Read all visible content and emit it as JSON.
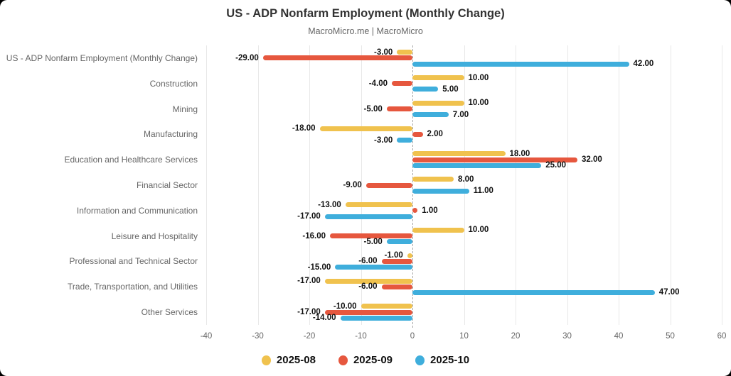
{
  "card": {
    "title": "US - ADP Nonfarm Employment (Monthly Change)",
    "subtitle": "MacroMicro.me | MacroMicro"
  },
  "chart_data": {
    "type": "bar",
    "orientation": "horizontal",
    "title": "US - ADP Nonfarm Employment (Monthly Change)",
    "subtitle": "MacroMicro.me | MacroMicro",
    "categories": [
      "US - ADP Nonfarm Employment (Monthly Change)",
      "Construction",
      "Mining",
      "Manufacturing",
      "Education and Healthcare Services",
      "Financial Sector",
      "Information and Communication",
      "Leisure and Hospitality",
      "Professional and Technical Sector",
      "Trade, Transportation, and Utilities",
      "Other Services"
    ],
    "series": [
      {
        "name": "2025-08",
        "color": "#F0C24E",
        "values": [
          -3,
          10,
          10,
          -18,
          18,
          8,
          -13,
          10,
          -1,
          -17,
          -10
        ]
      },
      {
        "name": "2025-09",
        "color": "#E6573E",
        "values": [
          -29,
          -4,
          -5,
          2,
          32,
          -9,
          1,
          -16,
          -6,
          -6,
          -17
        ]
      },
      {
        "name": "2025-10",
        "color": "#3FAEDC",
        "values": [
          42,
          5,
          7,
          -3,
          25,
          11,
          -17,
          -5,
          -15,
          47,
          -14
        ]
      }
    ],
    "xlim": [
      -40,
      60
    ],
    "xticks": [
      -40,
      -30,
      -20,
      -10,
      0,
      10,
      20,
      30,
      40,
      50,
      60
    ],
    "value_label_decimals": 2,
    "grid": true,
    "legend_position": "bottom"
  },
  "style": {
    "page_background": "#000000",
    "card_background": "#ffffff",
    "title_color": "#333333",
    "subtitle_color": "#666666",
    "axis_text_color": "#666666",
    "grid_color": "#e8e8e8",
    "zero_line_color": "#a6a6a6",
    "value_label_color": "#111111"
  }
}
